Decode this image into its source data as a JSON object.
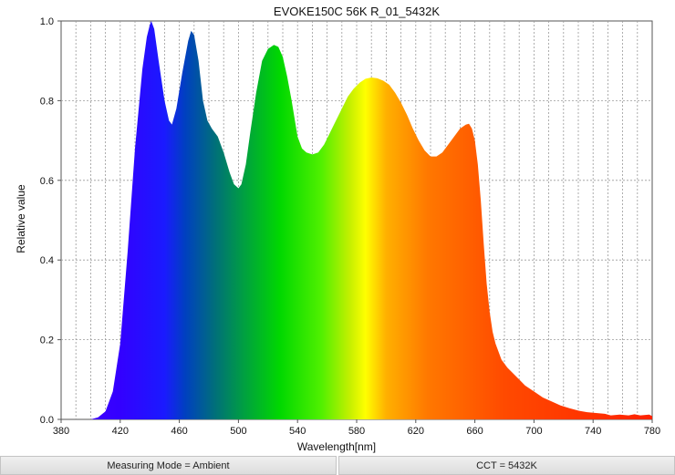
{
  "chart_data": {
    "type": "area",
    "title": "EVOKE150C 56K R_01_5432K",
    "xlabel": "Wavelength[nm]",
    "ylabel": "Relative value",
    "xlim": [
      380,
      780
    ],
    "ylim": [
      0,
      1.0
    ],
    "x_ticks": [
      "380",
      "420",
      "460",
      "500",
      "540",
      "580",
      "620",
      "660",
      "700",
      "740",
      "780"
    ],
    "y_ticks": [
      "0.0",
      "0.2",
      "0.4",
      "0.6",
      "0.8",
      "1.0"
    ],
    "grid": true,
    "x_minor_step": 10,
    "series": [
      {
        "x": [
          380,
          400,
          405,
          410,
          415,
          420,
          425,
          430,
          435,
          438,
          440,
          441,
          443,
          446,
          450,
          453,
          455,
          458,
          462,
          466,
          468,
          470,
          473,
          476,
          479,
          482,
          486,
          490,
          494,
          497,
          500,
          502,
          505,
          508,
          512,
          516,
          520,
          524,
          527,
          530,
          533,
          536,
          540,
          543,
          546,
          550,
          554,
          558,
          562,
          566,
          570,
          574,
          578,
          582,
          586,
          590,
          594,
          598,
          602,
          606,
          610,
          614,
          618,
          622,
          626,
          630,
          634,
          638,
          642,
          646,
          650,
          654,
          656,
          658,
          660,
          662,
          664,
          666,
          668,
          670,
          672,
          674,
          676,
          678,
          682,
          686,
          690,
          694,
          700,
          706,
          712,
          718,
          724,
          730,
          736,
          742,
          748,
          752,
          758,
          764,
          768,
          772,
          778,
          780
        ],
        "y": [
          0,
          0,
          0.005,
          0.02,
          0.07,
          0.19,
          0.42,
          0.68,
          0.88,
          0.96,
          0.99,
          1.0,
          0.98,
          0.9,
          0.8,
          0.75,
          0.74,
          0.78,
          0.87,
          0.95,
          0.975,
          0.965,
          0.9,
          0.8,
          0.75,
          0.73,
          0.71,
          0.67,
          0.62,
          0.59,
          0.58,
          0.59,
          0.64,
          0.72,
          0.82,
          0.9,
          0.93,
          0.94,
          0.935,
          0.91,
          0.86,
          0.8,
          0.71,
          0.68,
          0.67,
          0.665,
          0.67,
          0.69,
          0.72,
          0.75,
          0.78,
          0.81,
          0.83,
          0.845,
          0.855,
          0.858,
          0.856,
          0.85,
          0.84,
          0.82,
          0.795,
          0.765,
          0.73,
          0.7,
          0.675,
          0.66,
          0.66,
          0.67,
          0.69,
          0.71,
          0.73,
          0.74,
          0.742,
          0.73,
          0.7,
          0.64,
          0.55,
          0.44,
          0.34,
          0.27,
          0.22,
          0.19,
          0.17,
          0.15,
          0.13,
          0.115,
          0.1,
          0.085,
          0.07,
          0.055,
          0.045,
          0.035,
          0.028,
          0.022,
          0.018,
          0.016,
          0.014,
          0.01,
          0.012,
          0.01,
          0.013,
          0.01,
          0.012,
          0.008
        ]
      }
    ]
  },
  "footer": {
    "measuring_mode": "Measuring Mode = Ambient",
    "cct": "CCT = 5432K"
  }
}
